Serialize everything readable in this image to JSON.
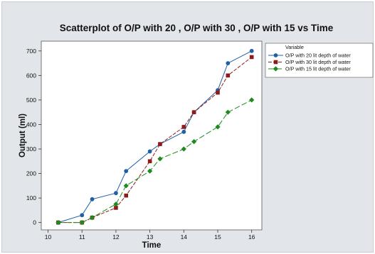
{
  "chart_data": {
    "type": "scatter",
    "title": "Scatterplot of O/P with 20 , O/P with 30 , O/P with 15  vs Time",
    "xlabel": "Time",
    "ylabel": "Output (ml)",
    "xlim": [
      9.8,
      16.3
    ],
    "ylim": [
      -30,
      740
    ],
    "xticks": [
      10,
      11,
      12,
      13,
      14,
      15,
      16
    ],
    "yticks": [
      0,
      100,
      200,
      300,
      400,
      500,
      600,
      700
    ],
    "grid": false,
    "legend": {
      "title": "Variable",
      "position": "right"
    },
    "series": [
      {
        "name": "O/P with 20 lit depth of water",
        "color": "#1f5fa8",
        "line_style": "solid",
        "marker": "circle",
        "x": [
          10.3,
          11.0,
          11.3,
          12.0,
          12.3,
          13.0,
          13.3,
          14.0,
          14.3,
          15.0,
          15.3,
          16.0
        ],
        "y": [
          0,
          30,
          95,
          120,
          210,
          290,
          320,
          370,
          450,
          540,
          650,
          700
        ]
      },
      {
        "name": "O/P with 30 lit depth of water",
        "color": "#8e1b1b",
        "line_style": "dashed",
        "marker": "square",
        "x": [
          10.3,
          11.0,
          11.3,
          12.0,
          12.3,
          13.0,
          13.3,
          14.0,
          14.3,
          15.0,
          15.3,
          16.0
        ],
        "y": [
          0,
          0,
          20,
          60,
          110,
          250,
          320,
          390,
          450,
          530,
          600,
          675
        ]
      },
      {
        "name": "O/P with 15 lit depth of water",
        "color": "#1e8a1e",
        "line_style": "longdash",
        "marker": "diamond",
        "x": [
          10.3,
          11.0,
          11.3,
          12.0,
          12.3,
          13.0,
          13.3,
          14.0,
          14.3,
          15.0,
          15.3,
          16.0
        ],
        "y": [
          0,
          0,
          20,
          75,
          150,
          210,
          260,
          300,
          330,
          390,
          450,
          500
        ]
      }
    ]
  }
}
